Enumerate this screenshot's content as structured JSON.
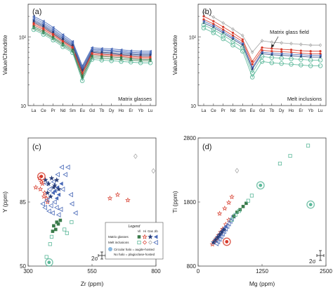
{
  "panels": {
    "a": {
      "label": "(a)",
      "annotation": "Matrix glasses",
      "glass_field_label": ""
    },
    "b": {
      "label": "(b)",
      "annotation": "Melt inclusions",
      "glass_field_label": "Matrix glass field"
    },
    "c": {
      "label": "(c)"
    },
    "d": {
      "label": "(d)"
    }
  },
  "legend": {
    "title": "Legend",
    "columns": [
      "Vil",
      "Hi",
      "Gas",
      "Jib"
    ],
    "rows": [
      "Matrix glasses",
      "Melt inclusions"
    ],
    "note1": "Circular halo = augite-hosted",
    "note2": "No halo = plagioclase-hosted"
  },
  "error_bar_label": "2σ",
  "colors": {
    "vil": "#3a7a4a",
    "hi": "#d63a2a",
    "gas": "#2a3f7a",
    "jib": "#4a6ab8",
    "teal": "#5cb89a",
    "grey": "#a0a0a0",
    "halo": "#8ab8e0"
  },
  "chart_data": [
    {
      "panel": "a",
      "type": "line",
      "title": "",
      "xlabel": "",
      "ylabel": "Value/Chondrite",
      "x": [
        "La",
        "Ce",
        "Pr",
        "Nd",
        "Sm",
        "Eu",
        "Gd",
        "Tb",
        "Dy",
        "Ho",
        "Er",
        "Yb",
        "Lu"
      ],
      "yscale": "log",
      "ylim": [
        10,
        300
      ],
      "yticks": [
        "10",
        "10²"
      ],
      "series": [
        {
          "group": "jib",
          "values": [
            200,
            170,
            138,
            108,
            86,
            38,
            70,
            68,
            67,
            65,
            63,
            62,
            62
          ]
        },
        {
          "group": "jib",
          "values": [
            190,
            160,
            130,
            102,
            82,
            36,
            67,
            65,
            64,
            62,
            60,
            59,
            59
          ]
        },
        {
          "group": "jib",
          "values": [
            180,
            152,
            124,
            98,
            79,
            35,
            65,
            63,
            62,
            60,
            58,
            57,
            57
          ]
        },
        {
          "group": "gas",
          "values": [
            172,
            146,
            118,
            94,
            76,
            33,
            62,
            60,
            59,
            57,
            56,
            55,
            55
          ]
        },
        {
          "group": "gas",
          "values": [
            164,
            140,
            113,
            90,
            73,
            31,
            60,
            58,
            57,
            55,
            54,
            53,
            53
          ]
        },
        {
          "group": "hi",
          "values": [
            158,
            134,
            110,
            87,
            71,
            30,
            58,
            56,
            55,
            54,
            52,
            51,
            51
          ]
        },
        {
          "group": "hi",
          "values": [
            150,
            128,
            105,
            84,
            68,
            29,
            56,
            54,
            53,
            52,
            50,
            49,
            49
          ]
        },
        {
          "group": "vil",
          "values": [
            142,
            121,
            99,
            80,
            65,
            27,
            53,
            52,
            51,
            50,
            48,
            47,
            47
          ]
        },
        {
          "group": "vil",
          "values": [
            135,
            115,
            95,
            76,
            62,
            25,
            50,
            49,
            48,
            47,
            46,
            45,
            45
          ]
        },
        {
          "group": "teal",
          "values": [
            128,
            109,
            90,
            72,
            59,
            23,
            47,
            46,
            45,
            44,
            43,
            42,
            42
          ]
        }
      ]
    },
    {
      "panel": "b",
      "type": "line",
      "title": "",
      "xlabel": "",
      "ylabel": "Value/Chondrite",
      "x": [
        "La",
        "Ce",
        "Pr",
        "Nd",
        "Sm",
        "Eu",
        "Gd",
        "Tb",
        "Dy",
        "Ho",
        "Er",
        "Yb",
        "Lu"
      ],
      "yscale": "log",
      "ylim": [
        10,
        300
      ],
      "yticks": [
        "10",
        "10²"
      ],
      "series": [
        {
          "group": "grey",
          "values": [
            230,
            195,
            160,
            130,
            105,
            60,
            88,
            84,
            82,
            80,
            78,
            76,
            76
          ]
        },
        {
          "group": "hi",
          "values": [
            200,
            170,
            140,
            115,
            92,
            44,
            70,
            68,
            66,
            65,
            63,
            62,
            62
          ]
        },
        {
          "group": "hi",
          "values": [
            180,
            155,
            128,
            105,
            86,
            40,
            64,
            62,
            61,
            60,
            58,
            57,
            57
          ]
        },
        {
          "group": "jib",
          "values": [
            170,
            146,
            120,
            98,
            80,
            36,
            60,
            58,
            57,
            56,
            55,
            54,
            54
          ]
        },
        {
          "group": "gas",
          "values": [
            160,
            138,
            114,
            93,
            76,
            34,
            57,
            55,
            54,
            53,
            52,
            51,
            51
          ]
        },
        {
          "group": "teal",
          "values": [
            150,
            128,
            106,
            86,
            70,
            30,
            52,
            50,
            49,
            48,
            47,
            46,
            46
          ]
        },
        {
          "group": "teal",
          "values": [
            135,
            115,
            94,
            76,
            62,
            26,
            44,
            42,
            41,
            40,
            39,
            38,
            38
          ]
        }
      ]
    },
    {
      "panel": "c",
      "type": "scatter",
      "title": "",
      "xlabel": "Zr (ppm)",
      "ylabel": "Y (ppm)",
      "xlim": [
        300,
        800
      ],
      "ylim": [
        50,
        120
      ],
      "xticks": [
        300,
        550,
        800
      ],
      "yticks": [
        50,
        85
      ],
      "series": [
        {
          "group": "hi",
          "style": "star",
          "points": [
            [
              345,
              98
            ],
            [
              352,
              96
            ],
            [
              348,
              92
            ],
            [
              356,
              95
            ],
            [
              365,
              90
            ],
            [
              372,
              87
            ],
            [
              362,
              88
            ],
            [
              376,
              85
            ],
            [
              620,
              87
            ],
            [
              650,
              89
            ],
            [
              690,
              86
            ],
            [
              330,
              93
            ]
          ]
        },
        {
          "group": "jib",
          "style": "triangle-filled",
          "points": [
            [
              405,
              91
            ],
            [
              415,
              93
            ],
            [
              420,
              89
            ],
            [
              430,
              95
            ],
            [
              412,
              87
            ],
            [
              398,
              90
            ]
          ]
        },
        {
          "group": "jib",
          "style": "triangle-open",
          "points": [
            [
              358,
              84
            ],
            [
              366,
              82
            ],
            [
              374,
              86
            ],
            [
              382,
              80
            ],
            [
              390,
              83
            ],
            [
              396,
              79
            ],
            [
              404,
              85
            ],
            [
              412,
              82
            ],
            [
              420,
              78
            ],
            [
              428,
              81
            ],
            [
              436,
              92
            ],
            [
              446,
              100
            ],
            [
              456,
              104
            ],
            [
              468,
              89
            ],
            [
              472,
              84
            ],
            [
              486,
              79
            ],
            [
              372,
              95
            ],
            [
              384,
              92
            ],
            [
              400,
              96
            ],
            [
              416,
              100
            ],
            [
              432,
              104
            ]
          ]
        },
        {
          "group": "gas",
          "style": "star",
          "points": [
            [
              368,
              97
            ],
            [
              380,
              95
            ],
            [
              392,
              98
            ],
            [
              404,
              94
            ],
            [
              412,
              97
            ],
            [
              420,
              92
            ],
            [
              376,
              90
            ],
            [
              388,
              88
            ],
            [
              400,
              93
            ]
          ]
        },
        {
          "group": "vil",
          "style": "square-filled",
          "points": [
            [
              400,
              72
            ],
            [
              408,
              70
            ],
            [
              418,
              73
            ],
            [
              426,
              75
            ],
            [
              396,
              69
            ],
            [
              412,
              74
            ]
          ]
        },
        {
          "group": "vil",
          "style": "square-open",
          "points": [
            [
              392,
              66
            ],
            [
              442,
              70
            ],
            [
              452,
              68
            ],
            [
              386,
              62
            ],
            [
              372,
              55
            ],
            [
              470,
              74
            ]
          ]
        },
        {
          "group": "grey",
          "style": "diamond-open",
          "points": [
            [
              720,
              110
            ],
            [
              790,
              102
            ]
          ]
        },
        {
          "group": "teal",
          "style": "halo",
          "points": [
            [
              382,
              52
            ]
          ]
        },
        {
          "group": "hi",
          "style": "halo",
          "points": [
            [
              352,
              99
            ]
          ]
        }
      ]
    },
    {
      "panel": "d",
      "type": "scatter",
      "title": "",
      "xlabel": "Mg (ppm)",
      "ylabel": "Ti (ppm)",
      "xlim": [
        0,
        2500
      ],
      "ylim": [
        800,
        2800
      ],
      "xticks": [
        0,
        1250,
        2500
      ],
      "yticks": [
        800,
        1800,
        2800
      ],
      "series": [
        {
          "group": "hi",
          "style": "star",
          "points": [
            [
              280,
              1140
            ],
            [
              320,
              1190
            ],
            [
              360,
              1230
            ],
            [
              400,
              1280
            ],
            [
              440,
              1330
            ],
            [
              480,
              1380
            ],
            [
              540,
              1450
            ],
            [
              600,
              1520
            ],
            [
              420,
              1620
            ],
            [
              520,
              1700
            ],
            [
              600,
              1790
            ],
            [
              660,
              1880
            ]
          ]
        },
        {
          "group": "jib",
          "style": "triangle-filled",
          "points": [
            [
              400,
              1260
            ],
            [
              430,
              1300
            ],
            [
              460,
              1340
            ],
            [
              500,
              1380
            ],
            [
              540,
              1420
            ]
          ]
        },
        {
          "group": "jib",
          "style": "triangle-open",
          "points": [
            [
              360,
              1150
            ],
            [
              390,
              1180
            ],
            [
              420,
              1220
            ],
            [
              450,
              1260
            ],
            [
              480,
              1300
            ],
            [
              510,
              1340
            ],
            [
              540,
              1380
            ],
            [
              570,
              1420
            ],
            [
              600,
              1460
            ],
            [
              630,
              1500
            ],
            [
              660,
              1540
            ],
            [
              690,
              1580
            ]
          ]
        },
        {
          "group": "gas",
          "style": "star",
          "points": [
            [
              300,
              1170
            ],
            [
              340,
              1210
            ],
            [
              380,
              1250
            ],
            [
              420,
              1290
            ],
            [
              460,
              1330
            ],
            [
              500,
              1370
            ]
          ]
        },
        {
          "group": "vil",
          "style": "square-filled",
          "points": [
            [
              700,
              1580
            ],
            [
              760,
              1640
            ],
            [
              820,
              1680
            ],
            [
              880,
              1730
            ],
            [
              940,
              1780
            ]
          ]
        },
        {
          "group": "vil",
          "style": "square-open",
          "points": [
            [
              660,
              1520
            ],
            [
              730,
              1600
            ],
            [
              800,
              1660
            ],
            [
              980,
              1820
            ],
            [
              1050,
              1900
            ],
            [
              1600,
              2400
            ],
            [
              1800,
              2520
            ],
            [
              2150,
              2680
            ]
          ]
        },
        {
          "group": "grey",
          "style": "diamond-open",
          "points": [
            [
              760,
              2290
            ]
          ]
        },
        {
          "group": "teal",
          "style": "halo",
          "points": [
            [
              1220,
              2060
            ],
            [
              2200,
              1760
            ]
          ]
        },
        {
          "group": "hi",
          "style": "halo",
          "points": [
            [
              560,
              1180
            ]
          ]
        }
      ]
    }
  ]
}
